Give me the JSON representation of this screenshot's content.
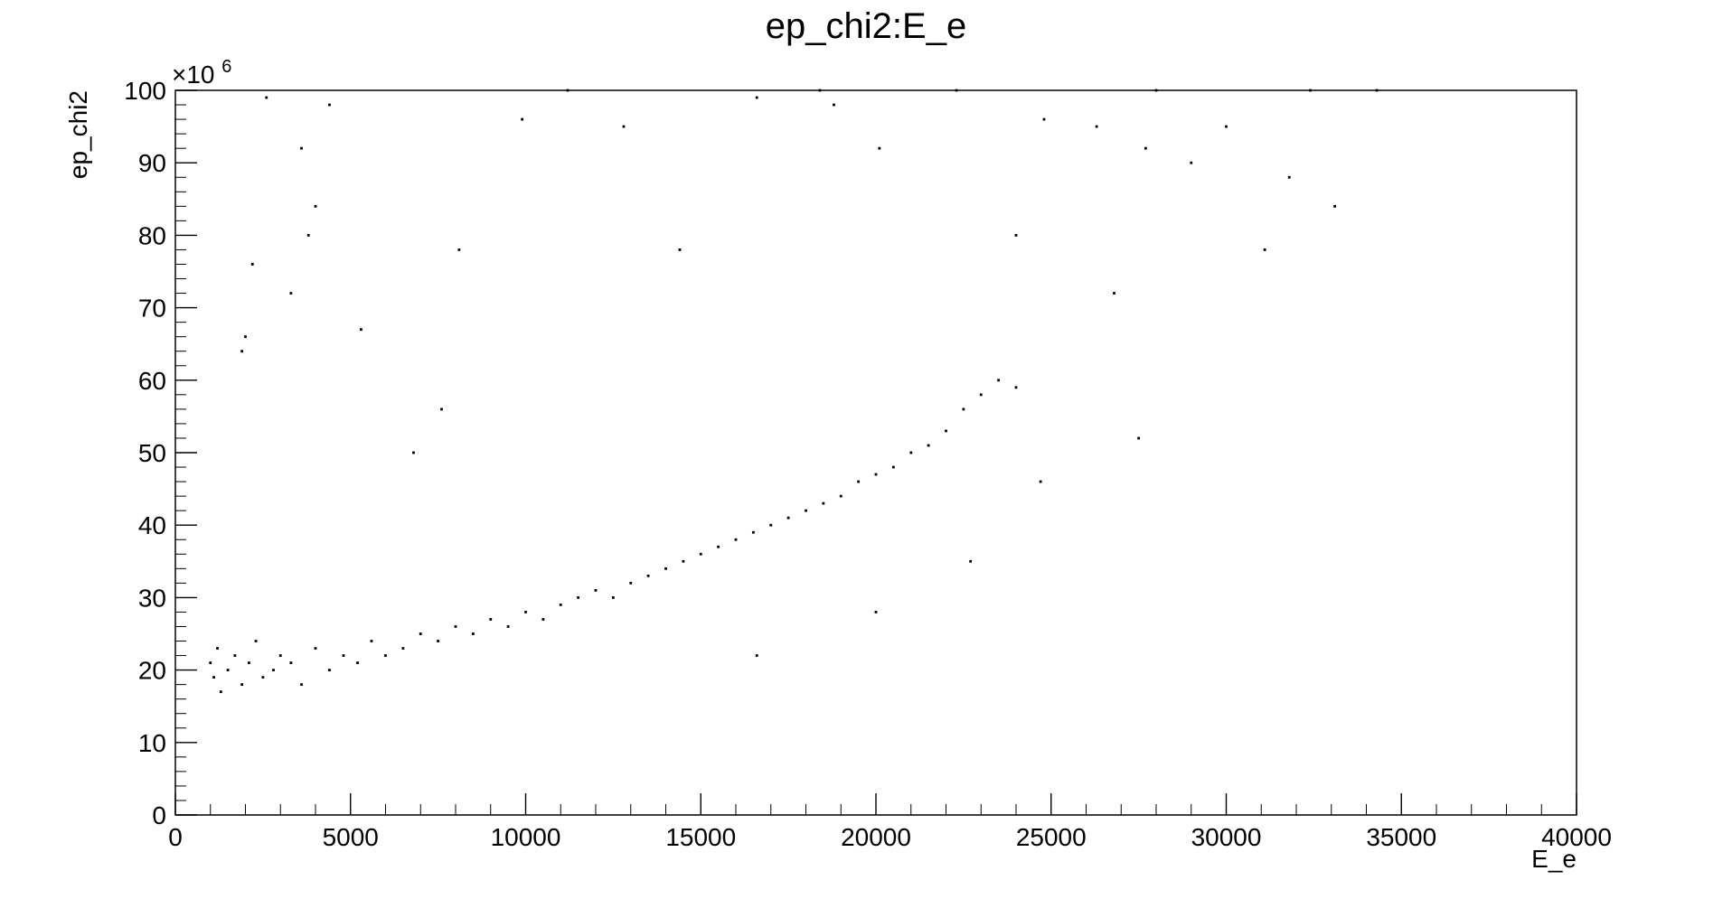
{
  "chart_data": {
    "type": "scatter",
    "title": "ep_chi2:E_e",
    "xlabel": "E_e",
    "ylabel": "ep_chi2",
    "y_exponent_label": "×10",
    "y_exponent_power": "6",
    "xlim": [
      0,
      40000
    ],
    "ylim": [
      0,
      100
    ],
    "x_ticks": [
      0,
      5000,
      10000,
      15000,
      20000,
      25000,
      30000,
      35000,
      40000
    ],
    "y_ticks": [
      0,
      10,
      20,
      30,
      40,
      50,
      60,
      70,
      80,
      90,
      100
    ],
    "x_tick_labels": [
      "0",
      "5000",
      "10000",
      "15000",
      "20000",
      "25000",
      "30000",
      "35000",
      "40000"
    ],
    "y_tick_labels": [
      "0",
      "10",
      "20",
      "30",
      "40",
      "50",
      "60",
      "70",
      "80",
      "90",
      "100"
    ],
    "grid": false,
    "legend": "none",
    "marker_color": "#000000",
    "series": [
      {
        "values": [
          [
            1000,
            21
          ],
          [
            1100,
            19
          ],
          [
            1200,
            23
          ],
          [
            1300,
            17
          ],
          [
            1500,
            20
          ],
          [
            1700,
            22
          ],
          [
            1900,
            18
          ],
          [
            2100,
            21
          ],
          [
            2300,
            24
          ],
          [
            2500,
            19
          ],
          [
            2800,
            20
          ],
          [
            3000,
            22
          ],
          [
            3300,
            21
          ],
          [
            3600,
            18
          ],
          [
            4000,
            23
          ],
          [
            4400,
            20
          ],
          [
            4800,
            22
          ],
          [
            5200,
            21
          ],
          [
            5600,
            24
          ],
          [
            6000,
            22
          ],
          [
            6500,
            23
          ],
          [
            7000,
            25
          ],
          [
            7500,
            24
          ],
          [
            8000,
            26
          ],
          [
            8500,
            25
          ],
          [
            9000,
            27
          ],
          [
            9500,
            26
          ],
          [
            10000,
            28
          ],
          [
            10500,
            27
          ],
          [
            11000,
            29
          ],
          [
            11500,
            30
          ],
          [
            12000,
            31
          ],
          [
            12500,
            30
          ],
          [
            13000,
            32
          ],
          [
            13500,
            33
          ],
          [
            14000,
            34
          ],
          [
            14500,
            35
          ],
          [
            15000,
            36
          ],
          [
            15500,
            37
          ],
          [
            16000,
            38
          ],
          [
            16500,
            39
          ],
          [
            17000,
            40
          ],
          [
            17500,
            41
          ],
          [
            18000,
            42
          ],
          [
            18500,
            43
          ],
          [
            19000,
            44
          ],
          [
            19500,
            46
          ],
          [
            20000,
            47
          ],
          [
            20500,
            48
          ],
          [
            21000,
            50
          ],
          [
            21500,
            51
          ],
          [
            22000,
            53
          ],
          [
            22500,
            56
          ],
          [
            23000,
            58
          ],
          [
            23500,
            60
          ],
          [
            24000,
            59
          ],
          [
            2200,
            76
          ],
          [
            2000,
            66
          ],
          [
            1900,
            64
          ],
          [
            2600,
            99
          ],
          [
            4400,
            98
          ],
          [
            3800,
            80
          ],
          [
            4000,
            84
          ],
          [
            3600,
            92
          ],
          [
            5300,
            67
          ],
          [
            7600,
            56
          ],
          [
            9900,
            96
          ],
          [
            11200,
            100
          ],
          [
            12800,
            95
          ],
          [
            14400,
            78
          ],
          [
            16600,
            99
          ],
          [
            18400,
            100
          ],
          [
            18800,
            98
          ],
          [
            20100,
            92
          ],
          [
            22300,
            100
          ],
          [
            24000,
            80
          ],
          [
            24800,
            96
          ],
          [
            26300,
            95
          ],
          [
            27700,
            92
          ],
          [
            28000,
            100
          ],
          [
            29000,
            90
          ],
          [
            30000,
            95
          ],
          [
            31100,
            78
          ],
          [
            31800,
            88
          ],
          [
            32400,
            100
          ],
          [
            33100,
            84
          ],
          [
            34300,
            100
          ],
          [
            26800,
            72
          ],
          [
            27500,
            52
          ],
          [
            24700,
            46
          ],
          [
            22700,
            35
          ],
          [
            20000,
            28
          ],
          [
            16600,
            22
          ],
          [
            8100,
            78
          ],
          [
            6800,
            50
          ],
          [
            3300,
            72
          ]
        ]
      }
    ]
  }
}
